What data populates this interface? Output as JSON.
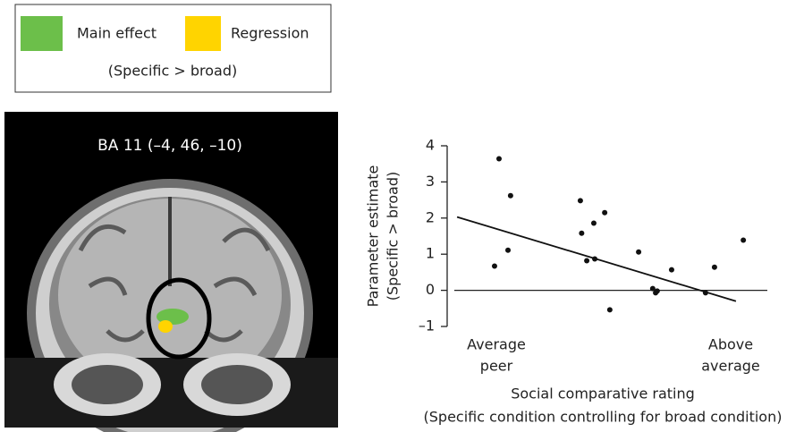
{
  "legend": {
    "items": [
      {
        "label": "Main effect",
        "color": "#6cbf4a"
      },
      {
        "label": "Regression",
        "color": "#ffd400"
      }
    ],
    "note": "(Specific > broad)"
  },
  "brain_image": {
    "label": "BA 11 (–4, 46, –10)"
  },
  "chart_data": {
    "type": "scatter",
    "y_label": [
      "Parameter estimate",
      "(Specific > broad)"
    ],
    "x_label": [
      "Social comparative rating",
      "(Specific condition controlling for broad condition)"
    ],
    "x_end_labels": [
      [
        "Average",
        "peer"
      ],
      [
        "Above",
        "average"
      ]
    ],
    "xlim": [
      0,
      100
    ],
    "ylim": [
      -1,
      4
    ],
    "yticks": [
      {
        "value": -1,
        "label": "–1"
      },
      0,
      1,
      2,
      3,
      4
    ],
    "series": [
      {
        "color": "#111111",
        "x": [
          16.2,
          19.8,
          19.0,
          14.8,
          41.6,
          49.2,
          45.8,
          42.0,
          43.6,
          46.1,
          50.8,
          59.8,
          70.1,
          64.2,
          65.6,
          65.1,
          80.7,
          83.5,
          92.5
        ],
        "values": [
          3.64,
          2.62,
          1.11,
          0.67,
          2.48,
          2.15,
          1.86,
          1.58,
          0.82,
          0.87,
          -0.54,
          1.06,
          0.57,
          0.05,
          -0.02,
          -0.07,
          -0.07,
          0.64,
          1.39
        ]
      }
    ],
    "fit": {
      "color": "#111111",
      "x": [
        3.1,
        90.2
      ],
      "y": [
        2.03,
        -0.3
      ]
    }
  }
}
